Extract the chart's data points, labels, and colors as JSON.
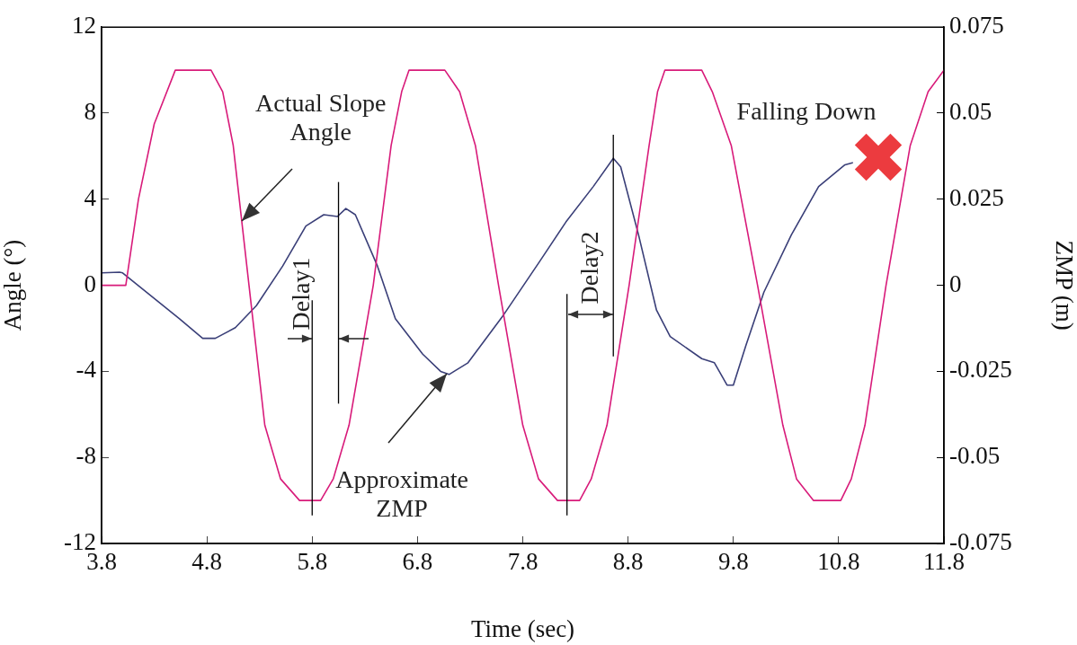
{
  "chart_data": {
    "type": "line",
    "xlabel": "Time (sec)",
    "ylabel": "Angle (°)",
    "y2label": "ZMP (m)",
    "xlim": [
      3.8,
      11.8
    ],
    "xticks": [
      3.8,
      4.8,
      5.8,
      6.8,
      7.8,
      8.8,
      9.8,
      10.8,
      11.8
    ],
    "ylim": [
      -12,
      12
    ],
    "yticks": [
      -12,
      -8,
      -4,
      0,
      4,
      8,
      12
    ],
    "y2lim": [
      -0.075,
      0.075
    ],
    "y2ticks": [
      -0.075,
      -0.05,
      -0.025,
      0,
      0.025,
      0.05,
      0.075
    ],
    "legend": false,
    "marker": "none",
    "line_style": "solid",
    "series": [
      {
        "color": "#d81b7a",
        "x": [
          3.8,
          4.03,
          4.15,
          4.3,
          4.5,
          4.84,
          4.95,
          5.05,
          5.2,
          5.35,
          5.5,
          5.68,
          5.88,
          6.0,
          6.15,
          6.38,
          6.55,
          6.65,
          6.72,
          7.06,
          7.2,
          7.35,
          7.57,
          7.8,
          7.95,
          8.13,
          8.34,
          8.45,
          8.6,
          8.81,
          9.0,
          9.08,
          9.15,
          9.5,
          9.6,
          9.78,
          10.03,
          10.27,
          10.4,
          10.56,
          10.82,
          10.92,
          11.05,
          11.25,
          11.48,
          11.65,
          11.8
        ],
        "values": [
          0,
          0,
          4,
          7.5,
          10,
          10,
          9,
          6.5,
          0,
          -6.5,
          -9,
          -10,
          -10,
          -9,
          -6.5,
          0,
          6.5,
          9,
          10,
          10,
          9,
          6.5,
          0,
          -6.5,
          -9,
          -10,
          -10,
          -9,
          -6.5,
          0,
          6.5,
          9,
          10,
          10,
          9,
          6.5,
          0,
          -6.5,
          -9,
          -10,
          -10,
          -9,
          -6.5,
          0,
          6.5,
          9,
          10
        ]
      },
      {
        "color": "#3a3f78",
        "axis": "y2",
        "x": [
          3.8,
          3.97,
          4.0,
          4.54,
          4.76,
          4.88,
          5.07,
          5.27,
          5.52,
          5.74,
          5.91,
          6.04,
          6.12,
          6.21,
          6.42,
          6.59,
          6.85,
          7.02,
          7.1,
          7.28,
          7.62,
          7.96,
          8.21,
          8.47,
          8.66,
          8.73,
          8.9,
          9.07,
          9.2,
          9.5,
          9.62,
          9.74,
          9.8,
          9.92,
          10.09,
          10.35,
          10.61,
          10.86,
          10.93
        ],
        "values": [
          0.0036,
          0.0038,
          0.0036,
          -0.0097,
          -0.0154,
          -0.0154,
          -0.0123,
          -0.0059,
          0.0056,
          0.0172,
          0.0205,
          0.02,
          0.0223,
          0.0205,
          0.0056,
          -0.0097,
          -0.02,
          -0.025,
          -0.0259,
          -0.0225,
          -0.0085,
          0.0069,
          0.0184,
          0.0287,
          0.0369,
          0.0344,
          0.0146,
          -0.0072,
          -0.0149,
          -0.0213,
          -0.0225,
          -0.029,
          -0.029,
          -0.0174,
          -0.002,
          0.0146,
          0.0287,
          0.035,
          0.0356
        ]
      }
    ],
    "ref_lines": [
      {
        "axis": "x",
        "value": 5.8,
        "color": "#000000"
      },
      {
        "axis": "x",
        "value": 6.05,
        "color": "#000000"
      },
      {
        "axis": "x",
        "value": 8.22,
        "color": "#000000"
      },
      {
        "axis": "x",
        "value": 8.66,
        "color": "#000000"
      }
    ],
    "annotations": [
      {
        "text": "Actual Slope Angle",
        "x": 5.13,
        "y": 3.0
      },
      {
        "text": "Approximate ZMP",
        "x": 7.08,
        "y": -4.1
      },
      "Falling Down",
      {
        "text": "Delay1",
        "x": 5.8,
        "y": -2.5
      },
      "Delay2"
    ]
  }
}
